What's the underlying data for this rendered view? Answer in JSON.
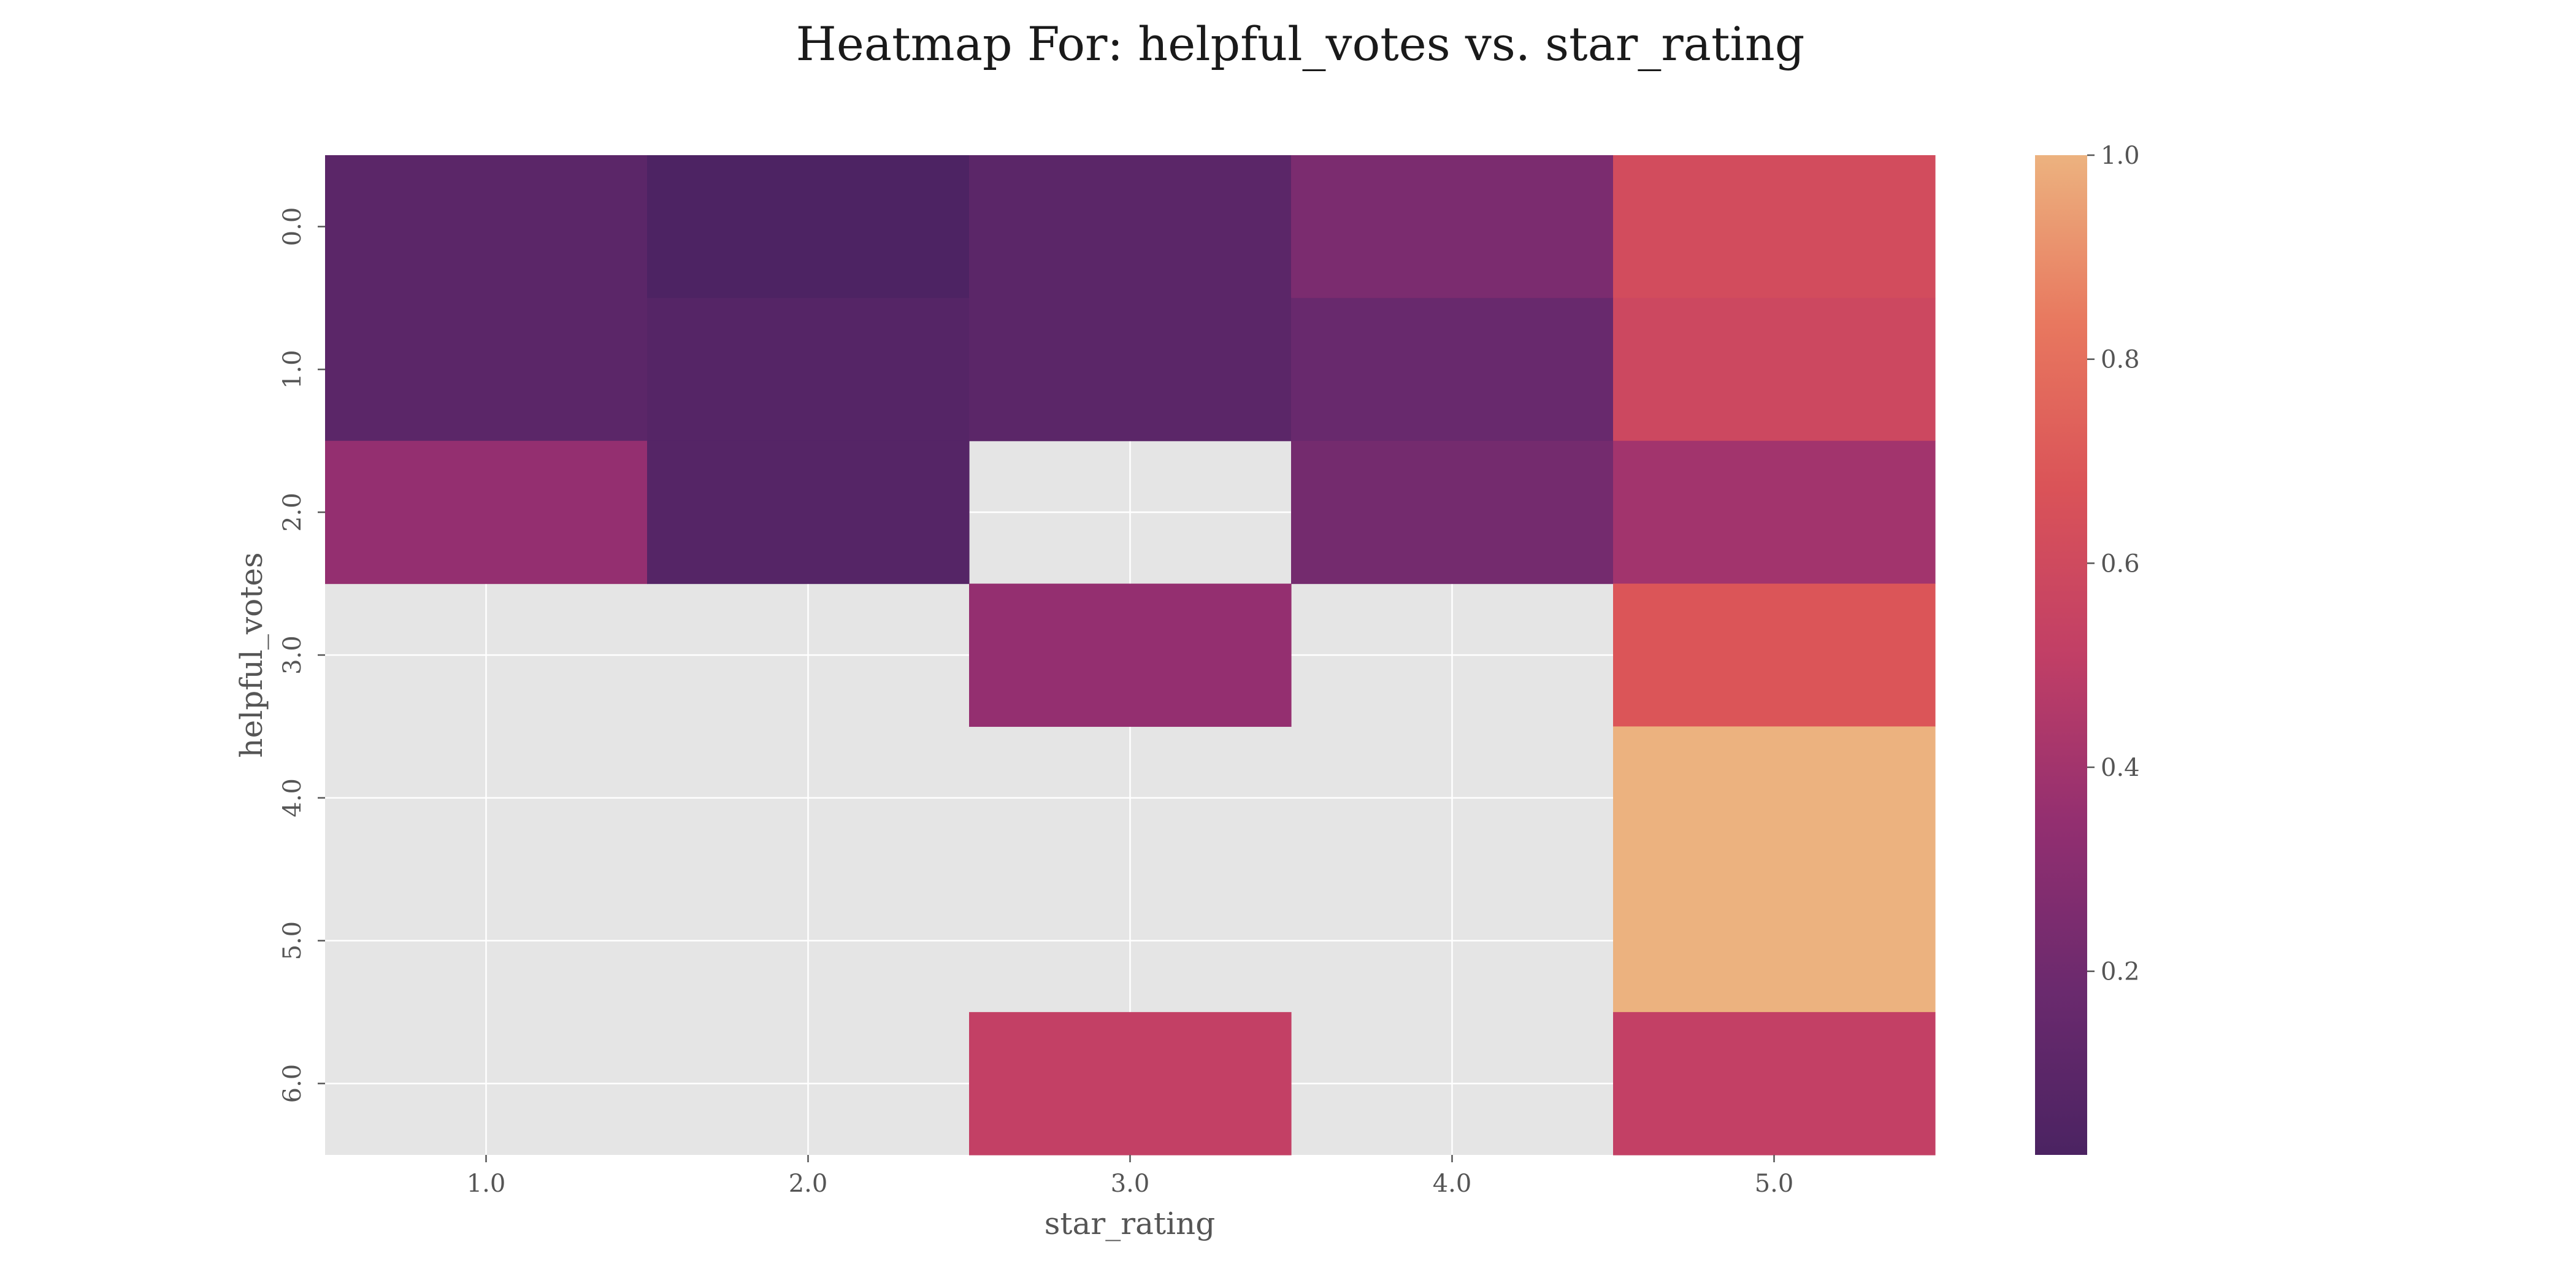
{
  "chart_data": {
    "type": "heatmap",
    "title": "Heatmap For: helpful_votes vs. star_rating",
    "xlabel": "star_rating",
    "ylabel": "helpful_votes",
    "x_categories": [
      "1.0",
      "2.0",
      "3.0",
      "4.0",
      "5.0"
    ],
    "y_categories": [
      "0.0",
      "1.0",
      "2.0",
      "3.0",
      "4.0",
      "5.0",
      "6.0"
    ],
    "values": [
      [
        0.1,
        0.03,
        0.1,
        0.25,
        0.62
      ],
      [
        0.1,
        0.07,
        0.1,
        0.17,
        0.58
      ],
      [
        0.35,
        0.07,
        null,
        0.22,
        0.4
      ],
      [
        null,
        null,
        0.35,
        null,
        0.68
      ],
      [
        null,
        null,
        null,
        null,
        1.0
      ],
      [
        null,
        null,
        null,
        null,
        1.0
      ],
      [
        null,
        null,
        0.52,
        null,
        0.52
      ]
    ],
    "colorbar": {
      "min": 0.02,
      "max": 1.0,
      "ticks": [
        "0.2",
        "0.4",
        "0.6",
        "0.8",
        "1.0"
      ],
      "colormap": "flare",
      "colors": [
        "#4b2362",
        "#6b2a6e",
        "#932f70",
        "#c13f66",
        "#da5358",
        "#e8785f",
        "#ecb27f"
      ]
    },
    "style": {
      "background": "#e5e5e5",
      "grid": true,
      "grid_color": "#ffffff"
    }
  }
}
